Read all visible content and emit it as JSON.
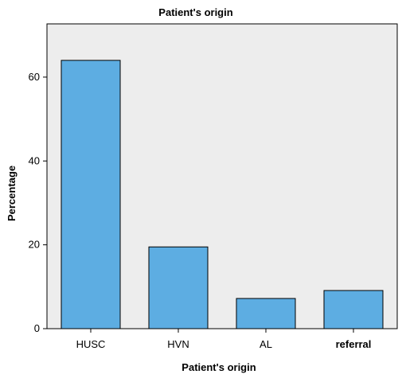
{
  "chart_data": {
    "type": "bar",
    "title": "Patient's origin",
    "xlabel": "Patient's origin",
    "ylabel": "Percentage",
    "categories": [
      "HUSC",
      "HVN",
      "AL",
      "referral"
    ],
    "values": [
      64,
      19.5,
      7.2,
      9.1
    ],
    "ylim": [
      0,
      72.7
    ],
    "yticks": [
      0,
      20,
      40,
      60
    ],
    "grid": false,
    "legend": "none",
    "colors": {
      "bar_fill": "#5dade2",
      "bar_stroke": "#000000",
      "plot_background": "#ededed",
      "frame": "#000000"
    }
  }
}
